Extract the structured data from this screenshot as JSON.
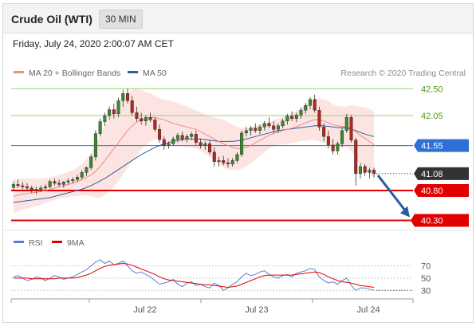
{
  "header": {
    "title": "Crude Oil (WTI)",
    "timeframe": "30 MIN",
    "datetime": "Friday, July 24, 2020 2:00:07 AM CET"
  },
  "chart_data": [
    {
      "type": "candlestick",
      "legend": {
        "position": "top-left",
        "items": [
          {
            "name": "MA 20 + Bollinger Bands",
            "color": "#f28b82"
          },
          {
            "name": "MA 50",
            "color": "#2f5fa3"
          }
        ]
      },
      "credit": "Research © 2020 Trading Central",
      "x_tick_labels": [
        "Jul 22",
        "Jul 23",
        "Jul 24"
      ],
      "ylim": [
        40.2,
        42.65
      ],
      "grid": false,
      "levels": [
        {
          "label": "42.50",
          "value": 42.5,
          "kind": "resistance",
          "color": "#9bd46b",
          "text_color": "#4a9a12"
        },
        {
          "label": "42.05",
          "value": 42.05,
          "kind": "resistance",
          "color": "#9bd46b",
          "text_color": "#4a9a12"
        },
        {
          "label": "41.55",
          "value": 41.55,
          "kind": "pivot",
          "color": "#2f6fd6",
          "text_color": "#ffffff",
          "badge": "#2f6fd6"
        },
        {
          "label": "41.08",
          "value": 41.08,
          "kind": "last-price",
          "color": "#666666",
          "text_color": "#ffffff",
          "badge": "#333333"
        },
        {
          "label": "40.80",
          "value": 40.8,
          "kind": "support",
          "color": "#e10000",
          "text_color": "#ffffff",
          "badge": "#e10000"
        },
        {
          "label": "40.30",
          "value": 40.3,
          "kind": "support",
          "color": "#e10000",
          "text_color": "#ffffff",
          "badge": "#e10000"
        }
      ],
      "forecast_arrow": {
        "from": 41.08,
        "to": 40.3,
        "color": "#2b5c9e"
      },
      "candles": [
        [
          40.85,
          40.95,
          40.8,
          40.9
        ],
        [
          40.9,
          40.98,
          40.84,
          40.88
        ],
        [
          40.88,
          40.94,
          40.82,
          40.86
        ],
        [
          40.86,
          40.92,
          40.8,
          40.84
        ],
        [
          40.84,
          40.88,
          40.76,
          40.8
        ],
        [
          40.8,
          40.86,
          40.74,
          40.82
        ],
        [
          40.82,
          40.88,
          40.78,
          40.84
        ],
        [
          40.84,
          40.9,
          40.8,
          40.86
        ],
        [
          40.86,
          40.98,
          40.84,
          40.95
        ],
        [
          40.95,
          41.0,
          40.88,
          40.92
        ],
        [
          40.92,
          40.98,
          40.86,
          40.9
        ],
        [
          40.9,
          40.96,
          40.84,
          40.94
        ],
        [
          40.94,
          41.0,
          40.9,
          40.96
        ],
        [
          40.96,
          41.02,
          40.92,
          40.98
        ],
        [
          40.98,
          41.06,
          40.94,
          41.02
        ],
        [
          41.02,
          41.14,
          40.98,
          41.1
        ],
        [
          41.1,
          41.2,
          41.04,
          41.18
        ],
        [
          41.18,
          41.4,
          41.14,
          41.36
        ],
        [
          41.36,
          41.8,
          41.3,
          41.75
        ],
        [
          41.75,
          42.0,
          41.7,
          41.95
        ],
        [
          41.95,
          42.1,
          41.88,
          42.05
        ],
        [
          42.05,
          42.2,
          41.98,
          42.15
        ],
        [
          42.15,
          42.25,
          42.0,
          42.08
        ],
        [
          42.08,
          42.35,
          42.02,
          42.3
        ],
        [
          42.3,
          42.48,
          42.2,
          42.42
        ],
        [
          42.42,
          42.5,
          42.25,
          42.3
        ],
        [
          42.3,
          42.38,
          42.05,
          42.1
        ],
        [
          42.1,
          42.2,
          41.95,
          42.0
        ],
        [
          42.0,
          42.1,
          41.9,
          41.96
        ],
        [
          41.96,
          42.06,
          41.88,
          42.02
        ],
        [
          42.02,
          42.1,
          41.94,
          41.98
        ],
        [
          41.98,
          42.02,
          41.78,
          41.82
        ],
        [
          41.82,
          41.9,
          41.6,
          41.65
        ],
        [
          41.65,
          41.7,
          41.48,
          41.55
        ],
        [
          41.55,
          41.62,
          41.5,
          41.58
        ],
        [
          41.58,
          41.7,
          41.54,
          41.66
        ],
        [
          41.66,
          41.76,
          41.6,
          41.72
        ],
        [
          41.72,
          41.78,
          41.62,
          41.66
        ],
        [
          41.66,
          41.74,
          41.6,
          41.7
        ],
        [
          41.7,
          41.78,
          41.64,
          41.74
        ],
        [
          41.74,
          41.8,
          41.56,
          41.6
        ],
        [
          41.6,
          41.66,
          41.5,
          41.55
        ],
        [
          41.55,
          41.62,
          41.48,
          41.58
        ],
        [
          41.58,
          41.64,
          41.4,
          41.44
        ],
        [
          41.44,
          41.52,
          41.2,
          41.28
        ],
        [
          41.28,
          41.36,
          41.2,
          41.3
        ],
        [
          41.3,
          41.38,
          41.22,
          41.26
        ],
        [
          41.26,
          41.34,
          41.18,
          41.24
        ],
        [
          41.24,
          41.34,
          41.2,
          41.3
        ],
        [
          41.3,
          41.44,
          41.26,
          41.4
        ],
        [
          41.4,
          41.8,
          41.36,
          41.76
        ],
        [
          41.76,
          41.86,
          41.7,
          41.8
        ],
        [
          41.8,
          41.88,
          41.72,
          41.84
        ],
        [
          41.84,
          41.92,
          41.76,
          41.8
        ],
        [
          41.8,
          41.9,
          41.74,
          41.86
        ],
        [
          41.86,
          41.96,
          41.8,
          41.92
        ],
        [
          41.92,
          42.02,
          41.84,
          41.88
        ],
        [
          41.88,
          41.96,
          41.76,
          41.82
        ],
        [
          41.82,
          41.92,
          41.76,
          41.88
        ],
        [
          41.88,
          42.0,
          41.84,
          41.96
        ],
        [
          41.96,
          42.08,
          41.9,
          42.04
        ],
        [
          42.04,
          42.12,
          41.96,
          42.0
        ],
        [
          42.0,
          42.1,
          41.94,
          42.06
        ],
        [
          42.06,
          42.18,
          42.0,
          42.14
        ],
        [
          42.14,
          42.26,
          42.08,
          42.22
        ],
        [
          42.22,
          42.36,
          42.16,
          42.32
        ],
        [
          42.32,
          42.4,
          42.1,
          42.14
        ],
        [
          42.14,
          42.2,
          41.8,
          41.86
        ],
        [
          41.86,
          41.92,
          41.62,
          41.7
        ],
        [
          41.7,
          41.8,
          41.5,
          41.56
        ],
        [
          41.56,
          41.66,
          41.4,
          41.46
        ],
        [
          41.46,
          41.62,
          41.4,
          41.58
        ],
        [
          41.58,
          41.86,
          41.52,
          41.8
        ],
        [
          41.8,
          42.08,
          41.76,
          42.02
        ],
        [
          42.02,
          42.06,
          41.6,
          41.64
        ],
        [
          41.64,
          41.68,
          40.88,
          41.08
        ],
        [
          41.08,
          41.26,
          41.0,
          41.2
        ],
        [
          41.2,
          41.24,
          41.04,
          41.1
        ],
        [
          41.1,
          41.18,
          41.0,
          41.14
        ],
        [
          41.14,
          41.18,
          41.02,
          41.08
        ]
      ],
      "ma20": [
        40.7,
        40.72,
        40.74,
        40.75,
        40.76,
        40.77,
        40.78,
        40.8,
        40.82,
        40.84,
        40.86,
        40.88,
        40.9,
        40.92,
        40.95,
        40.98,
        41.02,
        41.06,
        41.12,
        41.2,
        41.3,
        41.4,
        41.5,
        41.6,
        41.7,
        41.8,
        41.88,
        41.94,
        41.98,
        42.0,
        42.02,
        42.02,
        42.0,
        41.98,
        41.95,
        41.92,
        41.9,
        41.88,
        41.86,
        41.84,
        41.82,
        41.78,
        41.74,
        41.7,
        41.66,
        41.62,
        41.58,
        41.55,
        41.52,
        41.5,
        41.5,
        41.52,
        41.55,
        41.6,
        41.64,
        41.68,
        41.72,
        41.75,
        41.78,
        41.8,
        41.82,
        41.84,
        41.87,
        41.9,
        41.93,
        41.96,
        41.98,
        41.98,
        41.96,
        41.93,
        41.9,
        41.88,
        41.87,
        41.86,
        41.84,
        41.78,
        41.72,
        41.67,
        41.62,
        41.56
      ],
      "ma50": [
        40.6,
        40.61,
        40.62,
        40.63,
        40.64,
        40.65,
        40.66,
        40.67,
        40.68,
        40.7,
        40.72,
        40.74,
        40.76,
        40.78,
        40.8,
        40.82,
        40.85,
        40.88,
        40.92,
        40.96,
        41.0,
        41.05,
        41.1,
        41.15,
        41.2,
        41.25,
        41.3,
        41.35,
        41.4,
        41.44,
        41.48,
        41.52,
        41.55,
        41.58,
        41.6,
        41.62,
        41.64,
        41.65,
        41.66,
        41.66,
        41.66,
        41.66,
        41.65,
        41.64,
        41.63,
        41.62,
        41.62,
        41.62,
        41.62,
        41.63,
        41.64,
        41.66,
        41.68,
        41.7,
        41.72,
        41.74,
        41.76,
        41.78,
        41.8,
        41.81,
        41.82,
        41.83,
        41.84,
        41.85,
        41.86,
        41.87,
        41.88,
        41.88,
        41.88,
        41.87,
        41.86,
        41.85,
        41.85,
        41.84,
        41.83,
        41.8,
        41.77,
        41.74,
        41.72,
        41.7
      ],
      "bb_width": [
        0.28,
        0.27,
        0.26,
        0.25,
        0.24,
        0.23,
        0.22,
        0.21,
        0.2,
        0.2,
        0.2,
        0.2,
        0.21,
        0.22,
        0.24,
        0.26,
        0.3,
        0.36,
        0.44,
        0.52,
        0.58,
        0.62,
        0.64,
        0.64,
        0.63,
        0.62,
        0.6,
        0.56,
        0.5,
        0.44,
        0.4,
        0.36,
        0.34,
        0.34,
        0.35,
        0.36,
        0.36,
        0.35,
        0.34,
        0.33,
        0.32,
        0.32,
        0.33,
        0.34,
        0.36,
        0.38,
        0.4,
        0.4,
        0.38,
        0.36,
        0.34,
        0.32,
        0.3,
        0.28,
        0.26,
        0.24,
        0.22,
        0.22,
        0.22,
        0.23,
        0.24,
        0.25,
        0.26,
        0.28,
        0.3,
        0.32,
        0.34,
        0.36,
        0.36,
        0.36,
        0.34,
        0.33,
        0.33,
        0.34,
        0.38,
        0.44,
        0.48,
        0.52,
        0.54,
        0.56
      ]
    },
    {
      "type": "line",
      "legend": {
        "position": "top-left",
        "items": [
          {
            "name": "RSI",
            "color": "#5b7fd6"
          },
          {
            "name": "9MA",
            "color": "#e10000"
          }
        ]
      },
      "ylim": [
        20,
        85
      ],
      "y_ticks": [
        70,
        50,
        30
      ],
      "series": [
        {
          "name": "RSI",
          "color": "#5b7fd6",
          "values": [
            52,
            54,
            50,
            46,
            48,
            52,
            50,
            46,
            50,
            54,
            52,
            48,
            50,
            52,
            56,
            60,
            64,
            70,
            76,
            80,
            74,
            78,
            72,
            74,
            78,
            70,
            62,
            58,
            60,
            56,
            52,
            46,
            40,
            42,
            44,
            48,
            40,
            36,
            42,
            44,
            38,
            40,
            36,
            34,
            42,
            38,
            30,
            34,
            40,
            44,
            52,
            58,
            54,
            56,
            60,
            62,
            56,
            52,
            50,
            54,
            56,
            52,
            58,
            60,
            62,
            66,
            64,
            52,
            46,
            42,
            44,
            40,
            46,
            50,
            38,
            30,
            34,
            34,
            32,
            30
          ]
        },
        {
          "name": "9MA",
          "color": "#e10000",
          "values": [
            50,
            50,
            50,
            50,
            49,
            49,
            49,
            49,
            49,
            49,
            50,
            50,
            50,
            50,
            51,
            53,
            55,
            58,
            62,
            66,
            69,
            71,
            72,
            73,
            74,
            73,
            71,
            68,
            65,
            62,
            59,
            56,
            52,
            49,
            47,
            46,
            45,
            44,
            43,
            42,
            41,
            40,
            39,
            39,
            38,
            37,
            36,
            35,
            36,
            37,
            40,
            43,
            46,
            49,
            52,
            54,
            55,
            55,
            55,
            55,
            55,
            55,
            56,
            57,
            58,
            59,
            60,
            59,
            56,
            52,
            49,
            46,
            44,
            43,
            42,
            40,
            38,
            37,
            36,
            35
          ]
        }
      ]
    }
  ]
}
